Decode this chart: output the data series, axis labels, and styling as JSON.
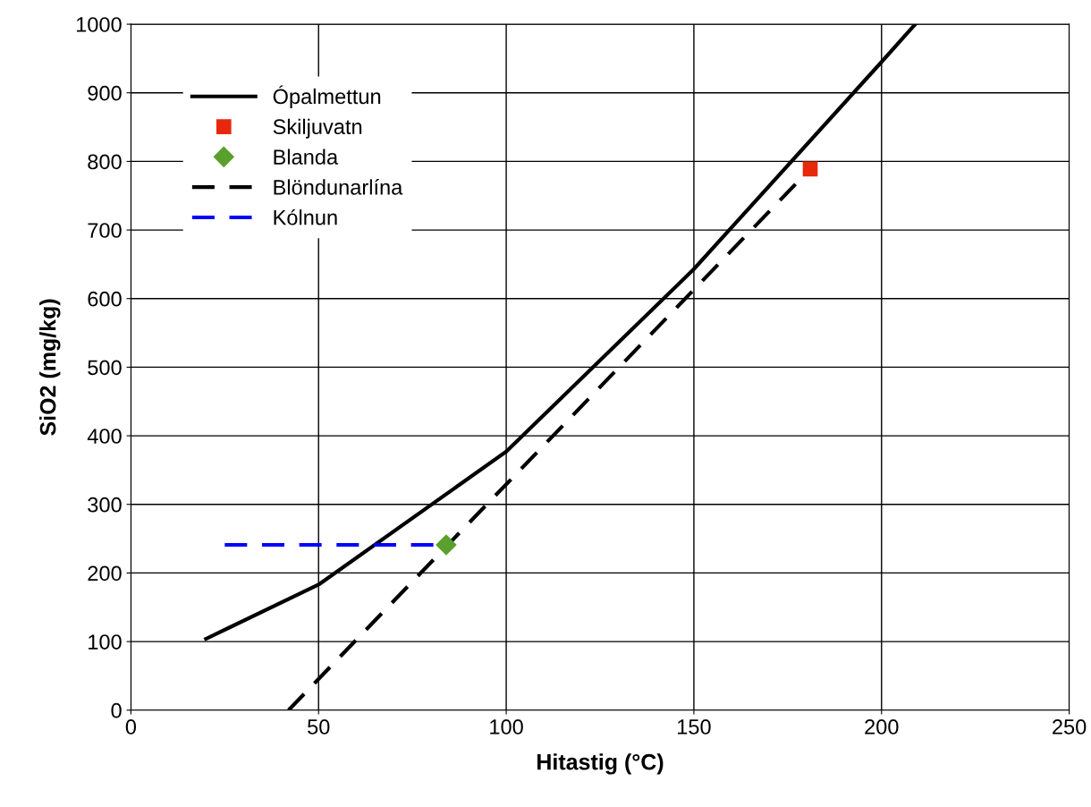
{
  "chart_data": {
    "type": "line",
    "xlabel": "Hitastig (°C)",
    "ylabel": "SiO2 (mg/kg)",
    "xlim": [
      0,
      250
    ],
    "xticks": [
      0,
      50,
      100,
      150,
      200,
      250
    ],
    "ylim": [
      0,
      1000
    ],
    "yticks": [
      0,
      100,
      200,
      300,
      400,
      500,
      600,
      700,
      800,
      900,
      1000
    ],
    "grid": true,
    "legend": "top left",
    "series": [
      {
        "name": "Ópalmettun",
        "color": "#000000",
        "line_style": "solid",
        "marker": "none",
        "x": [
          20,
          50,
          100,
          150,
          200,
          209
        ],
        "values": [
          104,
          183,
          377,
          643,
          945,
          1000
        ]
      },
      {
        "name": "Skiljuvatn",
        "type": "scatter",
        "color": "#e8280c",
        "marker": "square",
        "x": [
          181
        ],
        "values": [
          789
        ]
      },
      {
        "name": "Blanda",
        "type": "scatter",
        "color": "#5aa02c",
        "marker": "diamond",
        "x": [
          84
        ],
        "values": [
          241
        ]
      },
      {
        "name": "Blöndunarlína",
        "color": "#000000",
        "line_style": "dashed",
        "marker": "none",
        "x": [
          42,
          181
        ],
        "values": [
          0,
          789
        ]
      },
      {
        "name": "Kólnun",
        "color": "#0000ff",
        "line_style": "dashed",
        "marker": "none",
        "x": [
          25,
          81
        ],
        "values": [
          241,
          241
        ]
      }
    ]
  }
}
